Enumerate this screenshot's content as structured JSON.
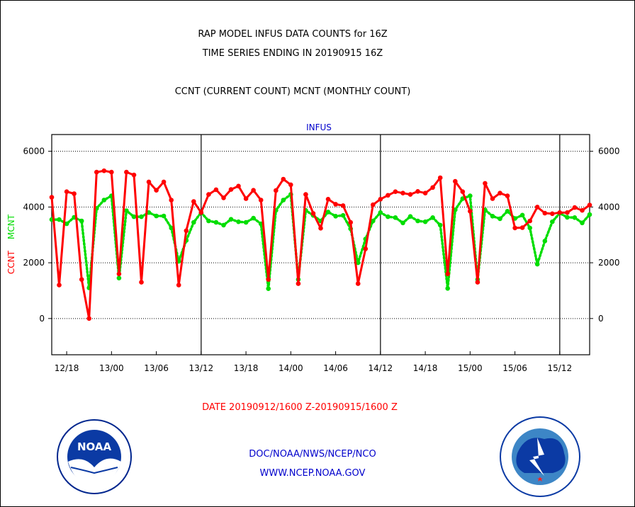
{
  "header": {
    "title_line1": "RAP MODEL INFUS DATA COUNTS for 16Z",
    "title_line2": "TIME SERIES ENDING IN 20190915 16Z",
    "subtitle": "CCNT (CURRENT COUNT) MCNT (MONTHLY COUNT)"
  },
  "footer": {
    "date_range": "DATE 20190912/1600 Z-20190915/1600 Z",
    "org_path": "DOC/NOAA/NWS/NCEP/NCO",
    "website": "WWW.NCEP.NOAA.GOV"
  },
  "logos": {
    "noaa_text": "NOAA",
    "noaa_ring": "NATIONAL OCEANIC AND ATMOSPHERIC ADMINISTRATION · U.S. DEPARTMENT OF COMMERCE ·",
    "nws_ring": "NATIONAL WEATHER SERVICE"
  },
  "colors": {
    "ccnt": "#ff0000",
    "mcnt": "#00dd00",
    "panel_title": "#0000cc",
    "footer_text": "#0000cc",
    "date_text": "#ff0000"
  },
  "chart_data": {
    "type": "line",
    "panel_title": "INFUS",
    "ylabel_ccnt": "CCNT",
    "ylabel_mcnt": "MCNT",
    "ylim": [
      -1300,
      6600
    ],
    "yticks": [
      6000,
      4000,
      2000,
      0
    ],
    "ytick_labels": [
      "6000",
      "4000",
      "2000",
      "0"
    ],
    "xlim": [
      0,
      72
    ],
    "x_unit": "hours since 2019-09-12 16Z",
    "xtick_positions": [
      2,
      8,
      14,
      20,
      26,
      32,
      38,
      44,
      50,
      56,
      62,
      68
    ],
    "xtick_labels": [
      "12/18",
      "13/00",
      "13/06",
      "13/12",
      "13/18",
      "14/00",
      "14/06",
      "14/12",
      "14/18",
      "15/00",
      "15/06",
      "15/12"
    ],
    "day_boundaries": [
      20,
      44,
      68
    ],
    "grid": "horizontal dotted",
    "series": [
      {
        "name": "CCNT",
        "style": "solid",
        "x": [
          0,
          1,
          2,
          3,
          4,
          5,
          6,
          7,
          8,
          9,
          10,
          11,
          12,
          13,
          14,
          15,
          16,
          17,
          18,
          19,
          20,
          21,
          22,
          23,
          24,
          25,
          26,
          27,
          28,
          29,
          30,
          31,
          32,
          33,
          34,
          35,
          36,
          37,
          38,
          39,
          40,
          41,
          42,
          43,
          44,
          45,
          46,
          47,
          48,
          49,
          50,
          51,
          52,
          53,
          54,
          55,
          56,
          57,
          58,
          59,
          60,
          61,
          62,
          63,
          64,
          65,
          66,
          67,
          68,
          69,
          70,
          71,
          72
        ],
        "values": [
          4350,
          1200,
          4550,
          4480,
          1400,
          0,
          5250,
          5300,
          5250,
          1600,
          5250,
          5150,
          1300,
          4900,
          4600,
          4900,
          4250,
          1200,
          3150,
          4200,
          3800,
          4450,
          4620,
          4330,
          4630,
          4750,
          4300,
          4600,
          4250,
          1400,
          4590,
          5000,
          4800,
          1250,
          4450,
          3770,
          3240,
          4280,
          4100,
          4050,
          3450,
          1250,
          2500,
          4080,
          4280,
          4420,
          4550,
          4500,
          4450,
          4560,
          4500,
          4700,
          5050,
          1600,
          4920,
          4550,
          3850,
          1300,
          4850,
          4300,
          4500,
          4400,
          3250,
          3260,
          3500,
          4000,
          3780,
          3760,
          3800,
          3800,
          3980,
          3880,
          4070
        ]
      },
      {
        "name": "MCNT",
        "style": "dotted",
        "x": [
          0,
          1,
          2,
          3,
          4,
          5,
          6,
          7,
          8,
          9,
          10,
          11,
          12,
          13,
          14,
          15,
          16,
          17,
          18,
          19,
          20,
          21,
          22,
          23,
          24,
          25,
          26,
          27,
          28,
          29,
          30,
          31,
          32,
          33,
          34,
          35,
          36,
          37,
          38,
          39,
          40,
          41,
          42,
          43,
          44,
          45,
          46,
          47,
          48,
          49,
          50,
          51,
          52,
          53,
          54,
          55,
          56,
          57,
          58,
          59,
          60,
          61,
          62,
          63,
          64,
          65,
          66,
          67,
          68,
          69,
          70,
          71,
          72
        ],
        "values": [
          3550,
          3550,
          3400,
          3630,
          3500,
          1100,
          3950,
          4250,
          4400,
          1450,
          3870,
          3650,
          3650,
          3800,
          3680,
          3680,
          3250,
          2050,
          2800,
          3450,
          3800,
          3500,
          3450,
          3350,
          3560,
          3470,
          3450,
          3600,
          3400,
          1070,
          3880,
          4250,
          4450,
          1400,
          3880,
          3700,
          3500,
          3820,
          3670,
          3700,
          3220,
          2000,
          2850,
          3500,
          3800,
          3650,
          3620,
          3430,
          3660,
          3500,
          3470,
          3620,
          3350,
          1080,
          3900,
          4300,
          4400,
          1400,
          3900,
          3670,
          3580,
          3850,
          3590,
          3710,
          3250,
          1950,
          2780,
          3470,
          3780,
          3630,
          3620,
          3430,
          3730
        ]
      }
    ]
  }
}
